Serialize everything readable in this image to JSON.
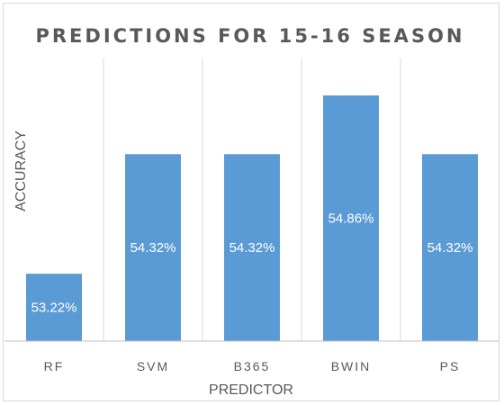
{
  "chart_data": {
    "type": "bar",
    "title": "PREDICTIONS FOR 15-16 SEASON",
    "xlabel": "PREDICTOR",
    "ylabel": "ACCURACY",
    "categories": [
      "RF",
      "SVM",
      "B365",
      "BWIN",
      "PS"
    ],
    "values": [
      53.22,
      54.32,
      54.32,
      54.86,
      54.32
    ],
    "data_labels": [
      "53.22%",
      "54.32%",
      "54.32%",
      "54.86%",
      "54.32%"
    ],
    "ylim": [
      52.6,
      55.2
    ],
    "grid": "vertical",
    "legend": "none",
    "bar_color": "#5b9bd5",
    "grid_color": "#d9d9d9",
    "text_color": "#595959"
  }
}
